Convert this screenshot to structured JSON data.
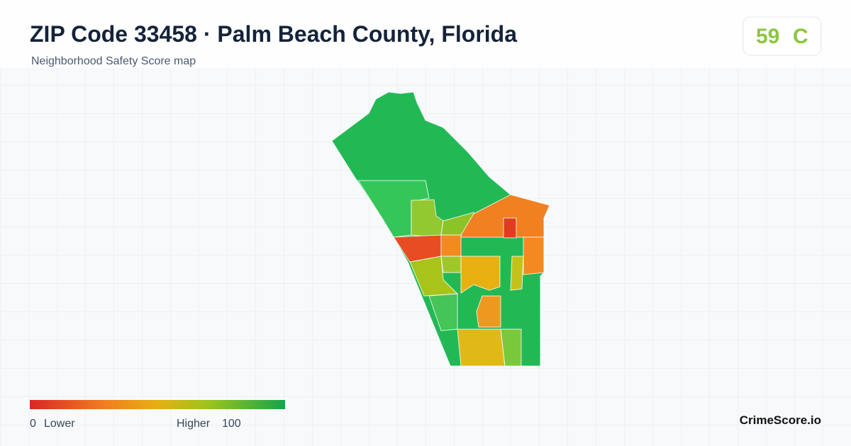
{
  "header": {
    "title": "ZIP Code 33458 · Palm Beach County, Florida",
    "subtitle": "Neighborhood Safety Score map"
  },
  "score": {
    "value": "59",
    "grade": "C"
  },
  "legend": {
    "min": "0",
    "min_label": "Lower",
    "max_label": "Higher",
    "max": "100"
  },
  "brand": "CrimeScore.io"
}
